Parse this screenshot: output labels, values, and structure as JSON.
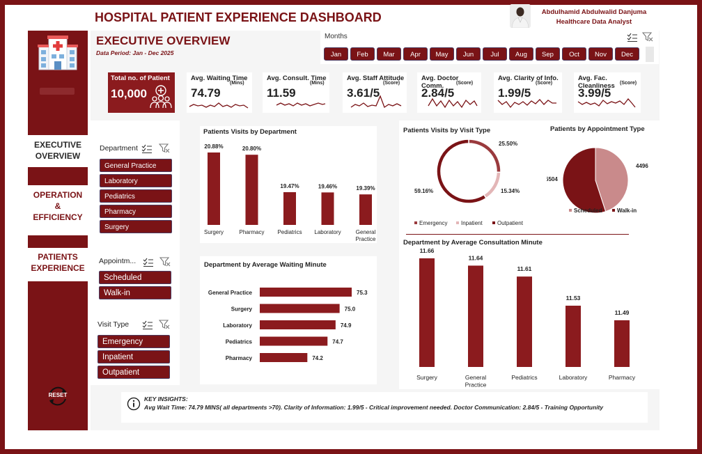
{
  "header": {
    "title": "HOSPITAL PATIENT EXPERIENCE DASHBOARD",
    "author_name": "Abdulhamid Abdulwalid Danjuma",
    "author_role": "Healthcare Data Analyst"
  },
  "sidebar": {
    "nav": [
      {
        "label": "EXECUTIVE OVERVIEW",
        "active": true
      },
      {
        "label": "OPERATION & EFFICIENCY",
        "active": false
      },
      {
        "label": "PATIENTS EXPERIENCE",
        "active": false
      }
    ],
    "reset_label": "RESET"
  },
  "page": {
    "heading": "EXECUTIVE OVERVIEW",
    "period": "Data Period: Jan - Dec 2025"
  },
  "months": {
    "label": "Months",
    "items": [
      "Jan",
      "Feb",
      "Mar",
      "Apr",
      "May",
      "Jun",
      "Jul",
      "Aug",
      "Sep",
      "Oct",
      "Nov",
      "Dec"
    ]
  },
  "kpis": {
    "total": {
      "title": "Total no. of Patient",
      "value": "10,000"
    },
    "cards": [
      {
        "title": "Avg. Waiting Time",
        "unit": "(Mins)",
        "value": "74.79"
      },
      {
        "title": "Avg. Consult. Time",
        "unit": "(Mins)",
        "value": "11.59"
      },
      {
        "title": "Avg. Staff Attitude",
        "unit": "(Score)",
        "value": "3.61/5"
      },
      {
        "title": "Avg. Doctor Comm.",
        "unit": "(Score)",
        "value": "2.84/5"
      },
      {
        "title": "Avg. Clarity of Info.",
        "unit": "(Score)",
        "value": "1.99/5"
      },
      {
        "title": "Avg. Fac. Cleanliness",
        "unit": "(Score)",
        "value": "3.99/5"
      }
    ]
  },
  "slicers": {
    "department": {
      "title": "Department",
      "items": [
        "General Practice",
        "Laboratory",
        "Pediatrics",
        "Pharmacy",
        "Surgery"
      ]
    },
    "appointment": {
      "title": "Appointm...",
      "items": [
        "Scheduled",
        "Walk-in"
      ]
    },
    "visit_type": {
      "title": "Visit Type",
      "items": [
        "Emergency",
        "Inpatient",
        "Outpatient"
      ]
    }
  },
  "colors": {
    "primary": "#7a1316",
    "bar": "#8b1b1e",
    "light": "#c98a8b",
    "pink": "#e3b6b7"
  },
  "chart_data": [
    {
      "type": "bar",
      "title": "Patients Visits by Department",
      "categories": [
        "Surgery",
        "Pharmacy",
        "Pediatrics",
        "Laboratory",
        "General Practice"
      ],
      "values": [
        20.88,
        20.8,
        19.47,
        19.46,
        19.39
      ],
      "labels": [
        "20.88%",
        "20.80%",
        "19.47%",
        "19.46%",
        "19.39%"
      ]
    },
    {
      "type": "bar",
      "orientation": "horizontal",
      "title": "Department by Average Waiting Minute",
      "categories": [
        "General Practice",
        "Surgery",
        "Laboratory",
        "Pediatrics",
        "Pharmacy"
      ],
      "values": [
        75.3,
        75.0,
        74.9,
        74.7,
        74.2
      ],
      "labels": [
        "75.3",
        "75.0",
        "74.9",
        "74.7",
        "74.2"
      ]
    },
    {
      "type": "pie",
      "variant": "donut",
      "title": "Patients Visits by Visit Type",
      "categories": [
        "Emergency",
        "Inpatient",
        "Outpatient"
      ],
      "values": [
        25.5,
        15.34,
        59.16
      ],
      "labels": [
        "25.50%",
        "15.34%",
        "59.16%"
      ],
      "legend_position": "bottom"
    },
    {
      "type": "pie",
      "title": "Patients by Appointment Type",
      "categories": [
        "Scheduled",
        "Walk-in"
      ],
      "values": [
        4496,
        5504
      ],
      "labels": [
        "4496",
        "5504"
      ],
      "legend_position": "bottom"
    },
    {
      "type": "bar",
      "title": "Department by Average Consultation Minute",
      "categories": [
        "Surgery",
        "General Practice",
        "Pediatrics",
        "Laboratory",
        "Pharmacy"
      ],
      "values": [
        11.66,
        11.64,
        11.61,
        11.53,
        11.49
      ],
      "labels": [
        "11.66",
        "11.64",
        "11.61",
        "11.53",
        "11.49"
      ]
    }
  ],
  "insights": {
    "label": "KEY INSIGHTS:",
    "text": "Avg Wait Time: 74.79 MINS( all departments >70). Clarity of Information: 1.99/5 - Critical improvement needed. Doctor Communication: 2.84/5 - Training Opportunity"
  }
}
